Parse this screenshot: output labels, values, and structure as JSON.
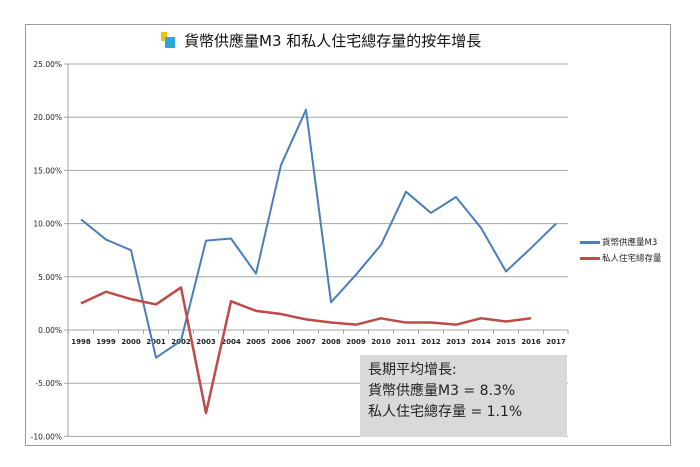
{
  "chart_data": {
    "type": "line",
    "title": "貨幣供應量M3 和私人住宅總存量的按年增長",
    "categories": [
      "1998",
      "1999",
      "2000",
      "2001",
      "2002",
      "2003",
      "2004",
      "2005",
      "2006",
      "2007",
      "2008",
      "2009",
      "2010",
      "2011",
      "2012",
      "2013",
      "2014",
      "2015",
      "2016",
      "2017"
    ],
    "series": [
      {
        "name": "貨幣供應量M3",
        "color": "#4a7ebb",
        "values": [
          10.4,
          8.5,
          7.5,
          -2.6,
          -1.0,
          8.4,
          8.6,
          5.3,
          15.5,
          20.7,
          2.6,
          5.2,
          8.0,
          13.0,
          11.0,
          12.5,
          9.6,
          5.5,
          7.7,
          10.0
        ]
      },
      {
        "name": "私人住宅總存量",
        "color": "#be4b48",
        "values": [
          2.5,
          3.6,
          2.9,
          2.4,
          4.0,
          -7.8,
          2.7,
          1.8,
          1.5,
          1.0,
          0.7,
          0.5,
          1.1,
          0.7,
          0.7,
          0.5,
          1.1,
          0.8,
          1.1,
          null
        ]
      }
    ],
    "yticks": [
      "25.00%",
      "20.00%",
      "15.00%",
      "10.00%",
      "5.00%",
      "0.00%",
      "-5.00%",
      "-10.00%"
    ],
    "ylim": [
      -10,
      25
    ],
    "grid": true,
    "legend": "right",
    "annotation": [
      "長期平均增長:",
      "貨幣供應量M3 = 8.3%",
      "私人住宅總存量 = 1.1%"
    ]
  }
}
